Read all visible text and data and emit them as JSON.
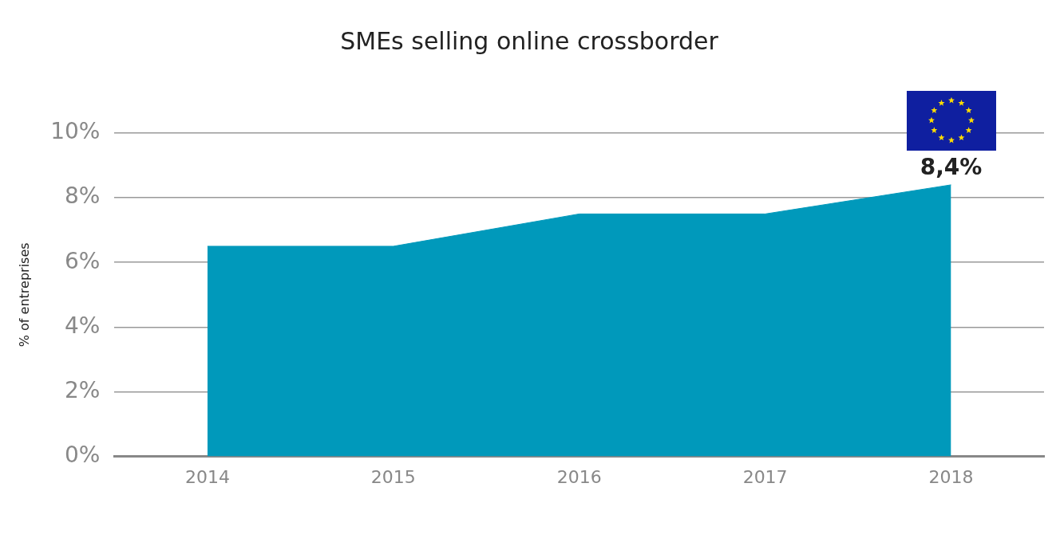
{
  "chart_data": {
    "type": "area",
    "title": "SMEs selling online crossborder",
    "ylabel": "% of entreprises",
    "categories": [
      "2014",
      "2015",
      "2016",
      "2017",
      "2018"
    ],
    "values": [
      6.5,
      6.5,
      7.5,
      7.5,
      8.4
    ],
    "color": "#0099bb",
    "value_labels": [
      null,
      null,
      null,
      null,
      "8,4%"
    ],
    "ylim": [
      0,
      10
    ],
    "yticks": [
      {
        "value": 0,
        "label": "0%"
      },
      {
        "value": 2,
        "label": "2%"
      },
      {
        "value": 4,
        "label": "4%"
      },
      {
        "value": 6,
        "label": "6%"
      },
      {
        "value": 8,
        "label": "8%"
      },
      {
        "value": 10,
        "label": "10%"
      }
    ],
    "grid": "y"
  }
}
